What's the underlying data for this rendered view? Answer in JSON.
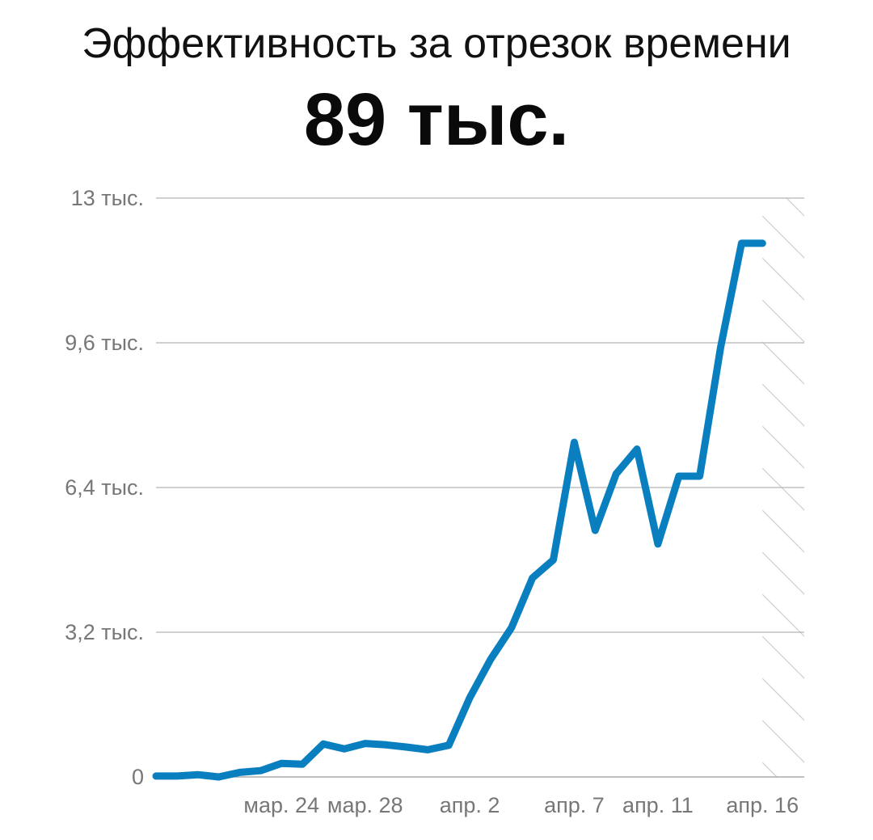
{
  "title": "Эффективность за отрезок времени",
  "headline": "89 тыс.",
  "chart_data": {
    "type": "line",
    "title": "Эффективность за отрезок времени",
    "xlabel": "",
    "ylabel": "",
    "ylim": [
      0,
      12800
    ],
    "grid": true,
    "legend": "none",
    "line_color": "#0a7fc0",
    "y_ticks": [
      {
        "value": 0,
        "label": "0"
      },
      {
        "value": 3200,
        "label": "3,2 тыс."
      },
      {
        "value": 6400,
        "label": "6,4 тыс."
      },
      {
        "value": 9600,
        "label": "9,6 тыс."
      },
      {
        "value": 12800,
        "label": "13 тыс."
      }
    ],
    "x_ticks": [
      {
        "x": "2025-03-24",
        "label": "мар. 24"
      },
      {
        "x": "2025-03-28",
        "label": "мар. 28"
      },
      {
        "x": "2025-04-02",
        "label": "апр. 2"
      },
      {
        "x": "2025-04-07",
        "label": "апр. 7"
      },
      {
        "x": "2025-04-11",
        "label": "апр. 11"
      },
      {
        "x": "2025-04-16",
        "label": "апр. 16"
      }
    ],
    "x_range": [
      "2025-03-18",
      "2025-04-18"
    ],
    "incomplete_from": "2025-04-16",
    "series": [
      {
        "name": "",
        "x": [
          "2025-03-18",
          "2025-03-19",
          "2025-03-20",
          "2025-03-21",
          "2025-03-22",
          "2025-03-23",
          "2025-03-24",
          "2025-03-25",
          "2025-03-26",
          "2025-03-27",
          "2025-03-28",
          "2025-03-29",
          "2025-03-30",
          "2025-03-31",
          "2025-04-01",
          "2025-04-02",
          "2025-04-03",
          "2025-04-04",
          "2025-04-05",
          "2025-04-06",
          "2025-04-07",
          "2025-04-08",
          "2025-04-09",
          "2025-04-10",
          "2025-04-11",
          "2025-04-12",
          "2025-04-13",
          "2025-04-14",
          "2025-04-15",
          "2025-04-16"
        ],
        "values": [
          20,
          20,
          50,
          0,
          100,
          140,
          300,
          280,
          730,
          620,
          740,
          710,
          660,
          600,
          700,
          1750,
          2600,
          3300,
          4400,
          4800,
          7400,
          5450,
          6700,
          7250,
          5150,
          6650,
          6650,
          9500,
          11800,
          11800
        ]
      }
    ]
  }
}
